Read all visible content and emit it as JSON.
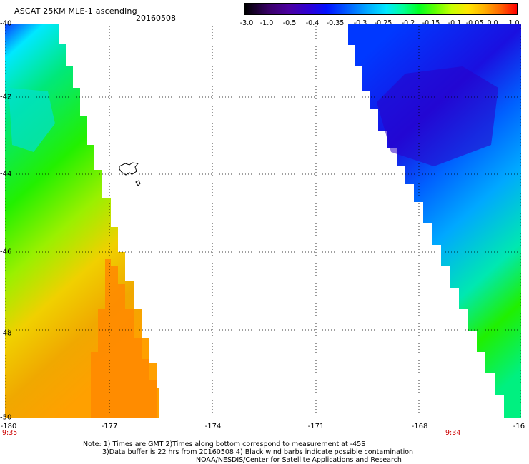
{
  "header": {
    "title": "ASCAT 25KM MLE-1 ascending",
    "date": "20160508"
  },
  "colorbar": {
    "ticks": [
      "-3.0",
      "-1.0",
      "-0.5",
      "-0.4",
      "-0.35",
      "-0.3",
      "-0.25",
      "-0.2",
      "-0.15",
      "-0.1",
      "-0.05",
      "0.0",
      "1.0"
    ],
    "colors": [
      "#000000",
      "#4b00a0",
      "#0010ff",
      "#00a8ff",
      "#00ff9a",
      "#60ff00",
      "#ffe600",
      "#ff6400",
      "#ff0000"
    ]
  },
  "map": {
    "lat_labels": [
      "-40",
      "-42",
      "-44",
      "-46",
      "-48",
      "-50"
    ],
    "lon_labels": [
      "-180",
      "-177",
      "-174",
      "-171",
      "-168",
      "-16"
    ],
    "pass_times": [
      "9:35",
      "9:34"
    ],
    "swath_colors": {
      "left_top": "#00e87a",
      "left_mid": "#22f000",
      "left_bottom": "#f0a800",
      "left_edge": "#ff8800",
      "right_top": "#0028ff",
      "right_core": "#1a10e0",
      "right_mid": "#00a8ff",
      "right_bottom": "#20f000"
    }
  },
  "footer": {
    "note_line1": "Note: 1) Times are GMT 2)Times along bottom correspond to measurement at -45S",
    "note_line2": "3)Data buffer is 22 hrs from 20160508 4) Black wind barbs indicate possible contamination",
    "credit": "NOAA/NESDIS/Center for Satellite Applications and Research"
  }
}
